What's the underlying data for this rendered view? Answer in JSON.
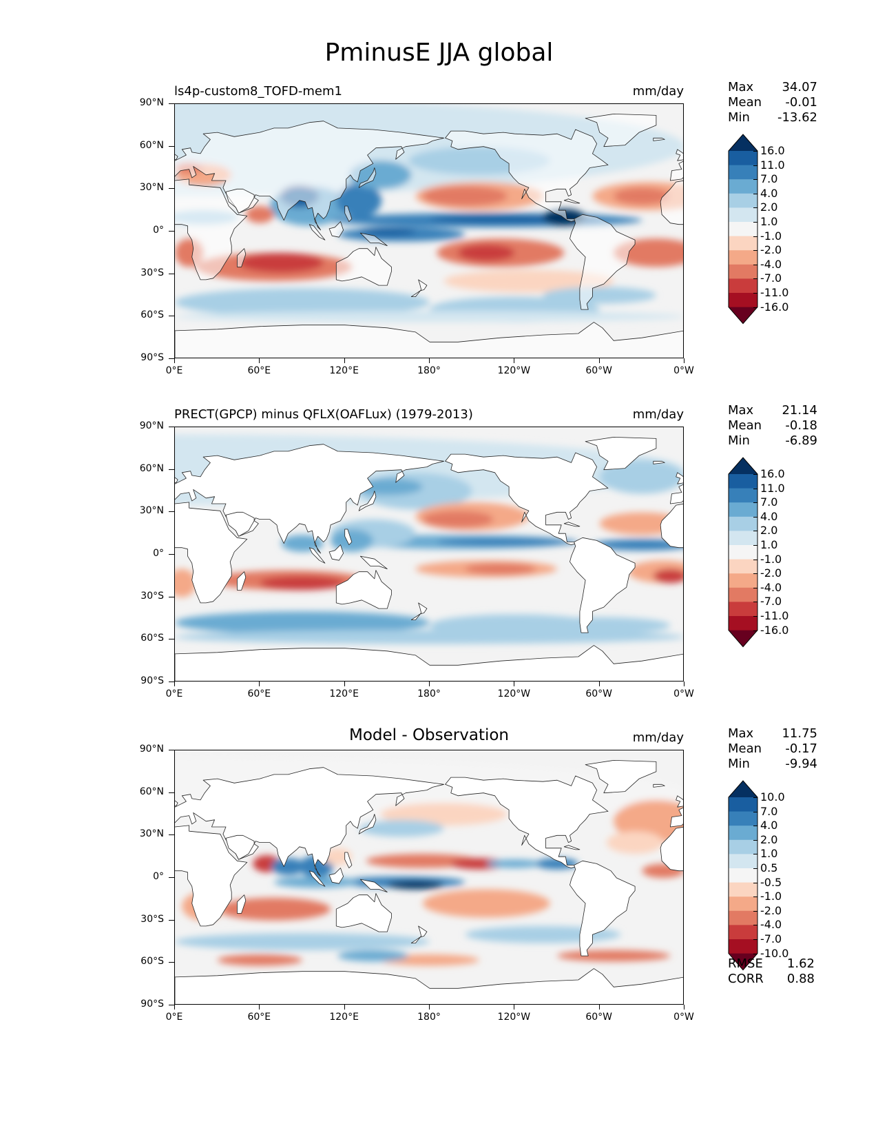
{
  "figure": {
    "title": "PminusE JJA global"
  },
  "axes": {
    "lat_ticks": [
      "90°N",
      "60°N",
      "30°N",
      "0°",
      "30°S",
      "60°S",
      "90°S"
    ],
    "lat_values": [
      90,
      60,
      30,
      0,
      -30,
      -60,
      -90
    ],
    "lon_ticks": [
      "0°E",
      "60°E",
      "120°E",
      "180°",
      "120°W",
      "60°W",
      "0°W"
    ],
    "lon_values": [
      0,
      60,
      120,
      180,
      240,
      300,
      360
    ]
  },
  "colors": {
    "diverging": [
      "#67001f",
      "#a50f22",
      "#c93c3c",
      "#e27a63",
      "#f4a988",
      "#fbd5c1",
      "#f5f5f5",
      "#d3e6f0",
      "#a8cfe5",
      "#6aabd2",
      "#3780b9",
      "#195ea0",
      "#053061"
    ],
    "land": "#ffffff",
    "coast": "#222222"
  },
  "panels": [
    {
      "id": "model",
      "title_left": "ls4p-custom8_TOFD-mem1",
      "title_center": "",
      "units": "mm/day",
      "stats": {
        "max_label": "Max",
        "max": "34.07",
        "mean_label": "Mean",
        "mean": "-0.01",
        "min_label": "Min",
        "min": "-13.62"
      },
      "levels": [
        "16.0",
        "11.0",
        "7.0",
        "4.0",
        "2.0",
        "1.0",
        "-1.0",
        "-2.0",
        "-4.0",
        "-7.0",
        "-11.0",
        "-16.0"
      ],
      "fills_land": true
    },
    {
      "id": "obs",
      "title_left": "PRECT(GPCP) minus QFLX(OAFLux) (1979-2013)",
      "title_center": "",
      "units": "mm/day",
      "stats": {
        "max_label": "Max",
        "max": "21.14",
        "mean_label": "Mean",
        "mean": "-0.18",
        "min_label": "Min",
        "min": "-6.89"
      },
      "levels": [
        "16.0",
        "11.0",
        "7.0",
        "4.0",
        "2.0",
        "1.0",
        "-1.0",
        "-2.0",
        "-4.0",
        "-7.0",
        "-11.0",
        "-16.0"
      ],
      "fills_land": false
    },
    {
      "id": "diff",
      "title_left": "",
      "title_center": "Model - Observation",
      "units": "mm/day",
      "stats": {
        "max_label": "Max",
        "max": "11.75",
        "mean_label": "Mean",
        "mean": "-0.17",
        "min_label": "Min",
        "min": "-9.94"
      },
      "levels": [
        "10.0",
        "7.0",
        "4.0",
        "2.0",
        "1.0",
        "0.5",
        "-0.5",
        "-1.0",
        "-2.0",
        "-4.0",
        "-7.0",
        "-10.0"
      ],
      "fills_land": false,
      "footer": {
        "rmse_label": "RMSE",
        "rmse": "1.62",
        "corr_label": "CORR",
        "corr": "0.88"
      }
    }
  ]
}
